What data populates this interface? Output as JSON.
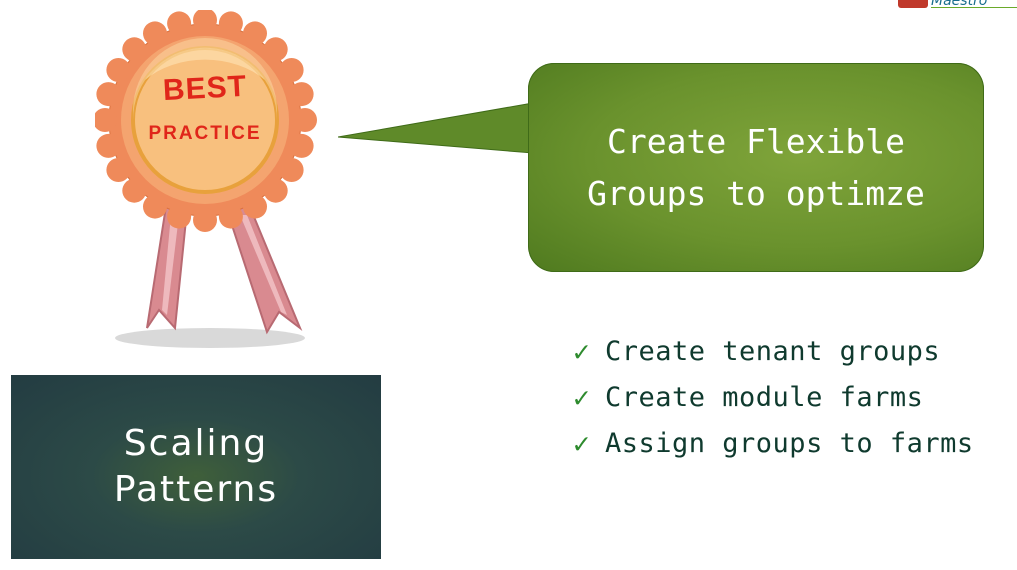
{
  "logo": {
    "text": "Maestro"
  },
  "badge": {
    "line1": "BEST",
    "line2": "PRACTICE"
  },
  "bubble": {
    "text": "Create Flexible Groups to optimze"
  },
  "checklist": [
    {
      "icon": "check-icon",
      "text": "Create tenant groups"
    },
    {
      "icon": "check-icon",
      "text": "Create module farms"
    },
    {
      "icon": "check-icon",
      "text": "Assign groups to farms"
    }
  ],
  "scaling_box": {
    "text": "Scaling\nPatterns"
  },
  "colors": {
    "bubble_green": "#6a922d",
    "badge_orange": "#f09a6a",
    "badge_text": "#e0261a",
    "check_green": "#2e8b2e",
    "list_text": "#0f3a2e",
    "box_dark": "#233c42"
  }
}
